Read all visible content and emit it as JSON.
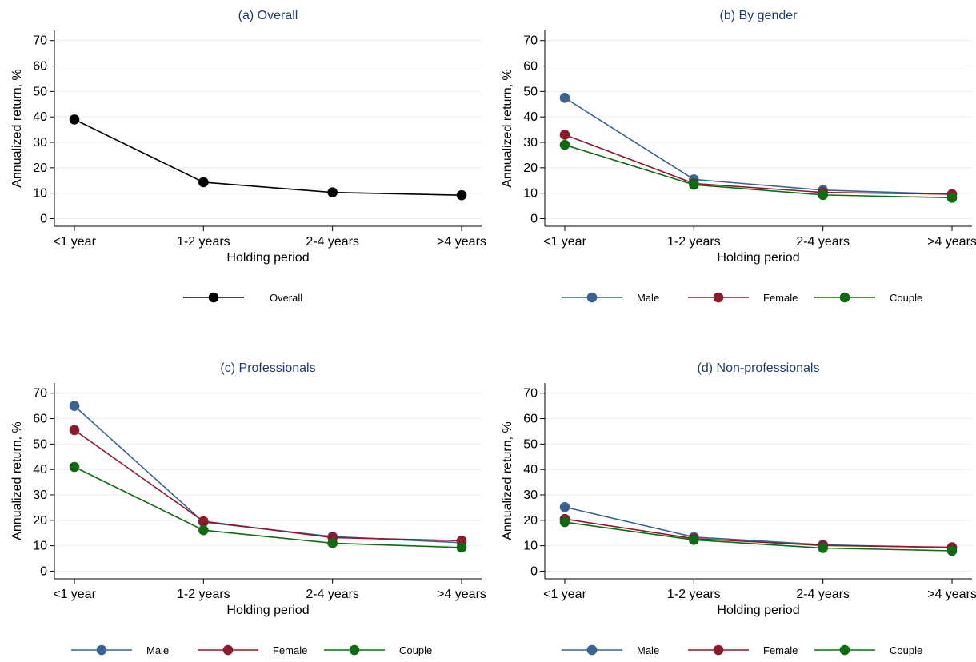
{
  "colors": {
    "title": "#1e3c6e",
    "axis": "#000000",
    "grid": "#e8eef2",
    "Overall": "#000000",
    "Male": "#3a6392",
    "Female": "#8a1a2c",
    "Couple": "#0e6b12"
  },
  "chart_data": [
    {
      "type": "line",
      "title": "(a) Overall",
      "xlabel": "Holding period",
      "ylabel": "Annualized return, %",
      "categories": [
        "<1 year",
        "1-2 years",
        "2-4 years",
        ">4 years"
      ],
      "yticks": [
        0,
        10,
        20,
        30,
        40,
        50,
        60,
        70
      ],
      "ylim": [
        -3,
        74
      ],
      "grid": true,
      "legend": "bottom",
      "series": [
        {
          "name": "Overall",
          "values": [
            39,
            14.3,
            10.3,
            9.2
          ]
        }
      ]
    },
    {
      "type": "line",
      "title": "(b) By gender",
      "xlabel": "Holding period",
      "ylabel": "Annualized return, %",
      "categories": [
        "<1 year",
        "1-2 years",
        "2-4 years",
        ">4 years"
      ],
      "yticks": [
        0,
        10,
        20,
        30,
        40,
        50,
        60,
        70
      ],
      "ylim": [
        -3,
        74
      ],
      "grid": true,
      "legend": "bottom",
      "series": [
        {
          "name": "Male",
          "values": [
            47.5,
            15.4,
            11.2,
            9.6
          ]
        },
        {
          "name": "Female",
          "values": [
            33,
            13.8,
            10.3,
            9.6
          ]
        },
        {
          "name": "Couple",
          "values": [
            29,
            13.3,
            9.3,
            8.2
          ]
        }
      ]
    },
    {
      "type": "line",
      "title": "(c) Professionals",
      "xlabel": "Holding period",
      "ylabel": "Annualized return, %",
      "categories": [
        "<1 year",
        "1-2 years",
        "2-4 years",
        ">4 years"
      ],
      "yticks": [
        0,
        10,
        20,
        30,
        40,
        50,
        60,
        70
      ],
      "ylim": [
        -3,
        74
      ],
      "grid": true,
      "legend": "bottom",
      "series": [
        {
          "name": "Male",
          "values": [
            65,
            19.3,
            13.6,
            11.2
          ]
        },
        {
          "name": "Female",
          "values": [
            55.5,
            19.6,
            13.2,
            12
          ]
        },
        {
          "name": "Couple",
          "values": [
            41,
            16.1,
            11,
            9.3
          ]
        }
      ]
    },
    {
      "type": "line",
      "title": "(d) Non-professionals",
      "xlabel": "Holding period",
      "ylabel": "Annualized return, %",
      "categories": [
        "<1 year",
        "1-2 years",
        "2-4 years",
        ">4 years"
      ],
      "yticks": [
        0,
        10,
        20,
        30,
        40,
        50,
        60,
        70
      ],
      "ylim": [
        -3,
        74
      ],
      "grid": true,
      "legend": "bottom",
      "series": [
        {
          "name": "Male",
          "values": [
            25.2,
            13.4,
            10.4,
            9.2
          ]
        },
        {
          "name": "Female",
          "values": [
            20.5,
            12.8,
            10.1,
            9.4
          ]
        },
        {
          "name": "Couple",
          "values": [
            19.3,
            12.3,
            9.1,
            8
          ]
        }
      ]
    }
  ]
}
